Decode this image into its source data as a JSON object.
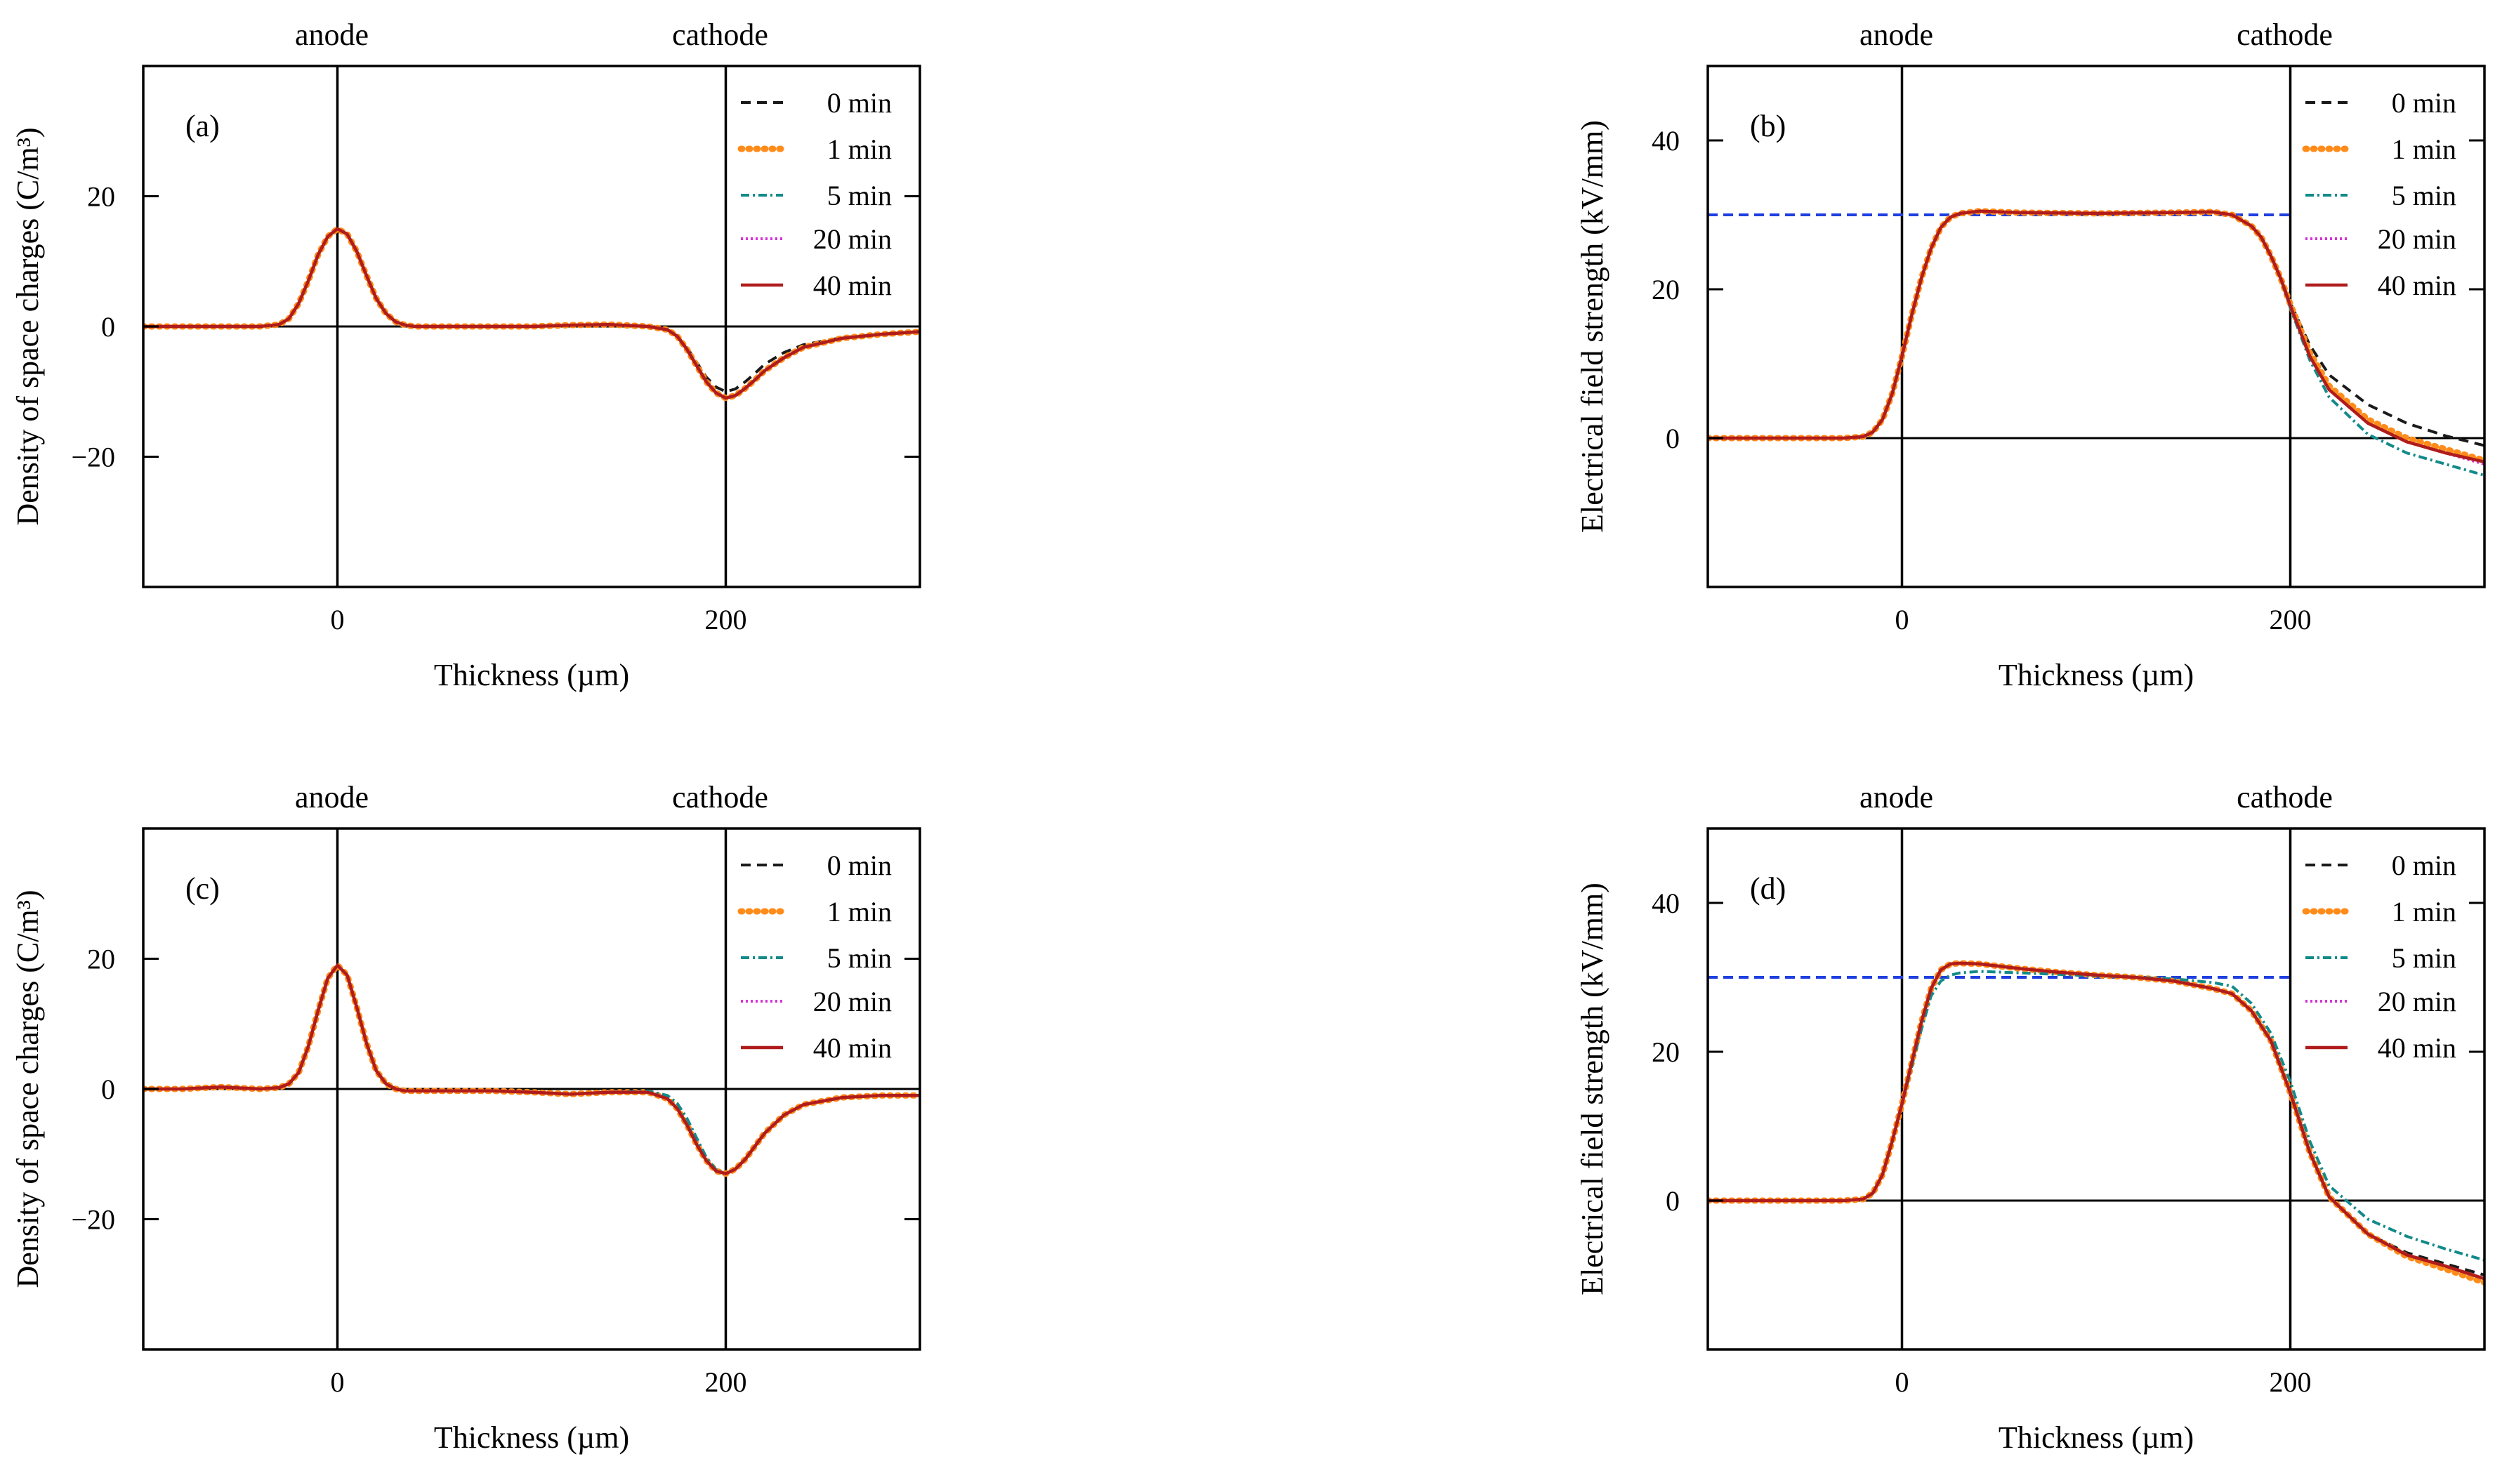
{
  "colors": {
    "0 min": "#1a1a1a",
    "1 min": "#ff8c1a",
    "5 min": "#138a8a",
    "20 min": "#d633d6",
    "40 min": "#b01c1c",
    "reference": "#1f3fe0",
    "axis": "#000000"
  },
  "chart_data": [
    {
      "id": "a",
      "type": "line",
      "panel_label": "(a)",
      "xlabel": "Thickness (µm)",
      "ylabel": "Density of space charges (C/m³)",
      "xlim": [
        -100,
        300
      ],
      "ylim": [
        -40,
        40
      ],
      "xticks": [
        0,
        200
      ],
      "yticks": [
        -20,
        0,
        20
      ],
      "electrodes": [
        {
          "label": "anode",
          "x": 0
        },
        {
          "label": "cathode",
          "x": 200
        }
      ],
      "legend": [
        "0 min",
        "1 min",
        "5 min",
        "20 min",
        "40 min"
      ],
      "x": [
        -100,
        -80,
        -60,
        -40,
        -30,
        -25,
        -20,
        -15,
        -10,
        -5,
        0,
        5,
        10,
        15,
        20,
        25,
        30,
        35,
        40,
        50,
        60,
        80,
        100,
        120,
        140,
        160,
        170,
        175,
        180,
        185,
        190,
        195,
        200,
        205,
        210,
        215,
        220,
        230,
        240,
        260,
        280,
        300
      ],
      "series": [
        {
          "name": "0 min",
          "values": [
            0,
            0,
            0,
            0,
            0.3,
            1.2,
            3.5,
            7,
            11,
            13.8,
            15,
            14.2,
            11.5,
            7.8,
            4.3,
            2,
            0.7,
            0.2,
            0,
            0,
            0,
            0,
            0,
            0.2,
            0.3,
            0,
            -0.5,
            -1.5,
            -3.2,
            -5.5,
            -7.8,
            -9.3,
            -10,
            -9.6,
            -8.5,
            -7.2,
            -5.8,
            -4,
            -2.8,
            -1.7,
            -1.2,
            -0.8
          ]
        },
        {
          "name": "1 min",
          "values": [
            0,
            0,
            0,
            0,
            0.3,
            1.2,
            3.5,
            7,
            11,
            13.8,
            15,
            14.2,
            11.5,
            7.8,
            4.3,
            2,
            0.7,
            0.2,
            0,
            0,
            0,
            0,
            0,
            0.2,
            0.3,
            0,
            -0.5,
            -1.5,
            -3.5,
            -6,
            -8.5,
            -10.2,
            -11,
            -10.6,
            -9.5,
            -8.2,
            -6.8,
            -4.8,
            -3.2,
            -1.8,
            -1.2,
            -0.8
          ]
        },
        {
          "name": "5 min",
          "values": [
            0,
            0,
            0,
            0,
            0.3,
            1.2,
            3.5,
            7,
            11,
            13.8,
            15,
            14.2,
            11.5,
            7.8,
            4.3,
            2,
            0.7,
            0.2,
            0,
            0,
            0,
            0,
            0,
            0.2,
            0.3,
            0,
            -0.5,
            -1.5,
            -3.5,
            -6,
            -8.5,
            -10.2,
            -11,
            -10.6,
            -9.5,
            -8.2,
            -6.8,
            -4.8,
            -3.2,
            -1.8,
            -1.2,
            -0.8
          ]
        },
        {
          "name": "20 min",
          "values": [
            0,
            0,
            0,
            0,
            0.3,
            1.2,
            3.5,
            7,
            11,
            13.8,
            15,
            14.2,
            11.5,
            7.8,
            4.3,
            2,
            0.7,
            0.2,
            0,
            0,
            0,
            0,
            0,
            0.2,
            0.3,
            0,
            -0.5,
            -1.5,
            -3.5,
            -6,
            -8.5,
            -10.2,
            -11,
            -10.6,
            -9.5,
            -8.2,
            -6.8,
            -4.8,
            -3.2,
            -1.8,
            -1.2,
            -0.8
          ]
        },
        {
          "name": "40 min",
          "values": [
            0,
            0,
            0,
            0,
            0.3,
            1.2,
            3.5,
            7,
            11,
            13.8,
            15,
            14.2,
            11.5,
            7.8,
            4.3,
            2,
            0.7,
            0.2,
            0,
            0,
            0,
            0,
            0,
            0.2,
            0.3,
            0,
            -0.5,
            -1.5,
            -3.5,
            -6,
            -8.5,
            -10.2,
            -11,
            -10.6,
            -9.5,
            -8.2,
            -6.8,
            -4.8,
            -3.2,
            -1.8,
            -1.2,
            -0.8
          ]
        }
      ]
    },
    {
      "id": "b",
      "type": "line",
      "panel_label": "(b)",
      "xlabel": "Thickness (µm)",
      "ylabel": "Electrical field strength (kV/mm)",
      "xlim": [
        -100,
        300
      ],
      "ylim": [
        -20,
        50
      ],
      "xticks": [
        0,
        200
      ],
      "yticks": [
        0,
        20,
        40
      ],
      "electrodes": [
        {
          "label": "anode",
          "x": 0
        },
        {
          "label": "cathode",
          "x": 200
        }
      ],
      "legend": [
        "0 min",
        "1 min",
        "5 min",
        "20 min",
        "40 min"
      ],
      "reference_line": {
        "y": 30,
        "x_from": -100,
        "x_to": 200
      },
      "x": [
        -100,
        -50,
        -30,
        -20,
        -15,
        -10,
        -5,
        0,
        5,
        10,
        15,
        20,
        25,
        30,
        40,
        60,
        100,
        140,
        160,
        170,
        180,
        185,
        190,
        195,
        200,
        210,
        220,
        240,
        260,
        280,
        300
      ],
      "series": [
        {
          "name": "0 min",
          "values": [
            0,
            0,
            0,
            0.2,
            0.8,
            2.5,
            6,
            11,
            16.5,
            21.5,
            25.5,
            28.3,
            29.7,
            30.2,
            30.5,
            30.3,
            30.2,
            30.3,
            30.4,
            30,
            28.5,
            27,
            24.5,
            21.5,
            18.2,
            12.5,
            8.5,
            4.5,
            2,
            0.3,
            -1
          ]
        },
        {
          "name": "1 min",
          "values": [
            0,
            0,
            0,
            0.2,
            0.8,
            2.5,
            6,
            11,
            16.5,
            21.5,
            25.5,
            28.3,
            29.7,
            30.2,
            30.5,
            30.3,
            30.2,
            30.3,
            30.4,
            30,
            28.5,
            27,
            24.5,
            21.5,
            18,
            11.5,
            7,
            2.5,
            0,
            -1.5,
            -3
          ]
        },
        {
          "name": "5 min",
          "values": [
            0,
            0,
            0,
            0.2,
            0.8,
            2.5,
            6,
            11,
            16.5,
            21.5,
            25.5,
            28.3,
            29.7,
            30.2,
            30.5,
            30.3,
            30.2,
            30.3,
            30.4,
            30,
            28.5,
            27,
            24.5,
            21.5,
            17.5,
            10.5,
            5.5,
            0.5,
            -2,
            -3.5,
            -5
          ]
        },
        {
          "name": "20 min",
          "values": [
            0,
            0,
            0,
            0.2,
            0.8,
            2.5,
            6,
            11,
            16.5,
            21.5,
            25.5,
            28.3,
            29.7,
            30.2,
            30.5,
            30.3,
            30.2,
            30.3,
            30.4,
            30,
            28.5,
            27,
            24.5,
            21.5,
            17.8,
            11,
            6.5,
            2,
            -0.5,
            -2,
            -3.5
          ]
        },
        {
          "name": "40 min",
          "values": [
            0,
            0,
            0,
            0.2,
            0.8,
            2.5,
            6,
            11,
            16.5,
            21.5,
            25.5,
            28.3,
            29.7,
            30.2,
            30.5,
            30.3,
            30.2,
            30.3,
            30.4,
            30,
            28.5,
            27,
            24.5,
            21.5,
            17.8,
            11,
            6.5,
            2,
            -0.5,
            -2,
            -3.2
          ]
        }
      ]
    },
    {
      "id": "c",
      "type": "line",
      "panel_label": "(c)",
      "xlabel": "Thickness (µm)",
      "ylabel": "Density of space charges (C/m³)",
      "xlim": [
        -100,
        300
      ],
      "ylim": [
        -40,
        40
      ],
      "xticks": [
        0,
        200
      ],
      "yticks": [
        -20,
        0,
        20
      ],
      "electrodes": [
        {
          "label": "anode",
          "x": 0
        },
        {
          "label": "cathode",
          "x": 200
        }
      ],
      "legend": [
        "0 min",
        "1 min",
        "5 min",
        "20 min",
        "40 min"
      ],
      "x": [
        -100,
        -80,
        -60,
        -40,
        -30,
        -25,
        -20,
        -15,
        -10,
        -5,
        0,
        5,
        10,
        15,
        20,
        25,
        30,
        35,
        40,
        50,
        60,
        80,
        100,
        120,
        140,
        160,
        170,
        175,
        180,
        185,
        190,
        195,
        200,
        205,
        210,
        215,
        220,
        230,
        240,
        260,
        280,
        300
      ],
      "series": [
        {
          "name": "0 min",
          "values": [
            0,
            0,
            0.3,
            0,
            0.2,
            0.8,
            2.5,
            6.5,
            12,
            17,
            19,
            17.5,
            12.5,
            7,
            2.8,
            0.8,
            0,
            -0.3,
            -0.3,
            -0.3,
            -0.3,
            -0.3,
            -0.5,
            -0.8,
            -0.5,
            -0.5,
            -1.5,
            -3,
            -5.5,
            -8.5,
            -11,
            -12.6,
            -13,
            -12.3,
            -10.8,
            -8.8,
            -6.8,
            -4,
            -2.4,
            -1.3,
            -1,
            -1
          ]
        },
        {
          "name": "1 min",
          "values": [
            0,
            0,
            0.3,
            0,
            0.2,
            0.8,
            2.5,
            6.5,
            12,
            17,
            19,
            17.5,
            12.5,
            7,
            2.8,
            0.8,
            0,
            -0.3,
            -0.3,
            -0.3,
            -0.3,
            -0.3,
            -0.5,
            -0.8,
            -0.5,
            -0.5,
            -1.5,
            -3,
            -5.5,
            -8.5,
            -11,
            -12.6,
            -13,
            -12.3,
            -10.8,
            -8.8,
            -6.8,
            -4,
            -2.4,
            -1.3,
            -1,
            -1
          ]
        },
        {
          "name": "5 min",
          "values": [
            0,
            0,
            0.3,
            0,
            0.2,
            0.8,
            2.5,
            6.5,
            12,
            17,
            19,
            17.5,
            12.5,
            7,
            2.8,
            0.8,
            0,
            -0.3,
            -0.3,
            -0.3,
            -0.3,
            -0.3,
            -0.5,
            -0.8,
            -0.5,
            -0.3,
            -1,
            -2.2,
            -4.5,
            -7.5,
            -10.5,
            -12.4,
            -13,
            -12.3,
            -10.8,
            -8.8,
            -6.8,
            -4,
            -2.4,
            -1.3,
            -1,
            -1
          ]
        },
        {
          "name": "20 min",
          "values": [
            0,
            0,
            0.3,
            0,
            0.2,
            0.8,
            2.5,
            6.5,
            12,
            17,
            19,
            17.5,
            12.5,
            7,
            2.8,
            0.8,
            0,
            -0.3,
            -0.3,
            -0.3,
            -0.3,
            -0.3,
            -0.5,
            -0.8,
            -0.5,
            -0.5,
            -1.5,
            -3,
            -5.5,
            -8.5,
            -11,
            -12.6,
            -13,
            -12.3,
            -10.8,
            -8.8,
            -6.8,
            -4,
            -2.4,
            -1.3,
            -1,
            -1
          ]
        },
        {
          "name": "40 min",
          "values": [
            0,
            0,
            0.3,
            0,
            0.2,
            0.8,
            2.5,
            6.5,
            12,
            17,
            19,
            17.5,
            12.5,
            7,
            2.8,
            0.8,
            0,
            -0.3,
            -0.3,
            -0.3,
            -0.3,
            -0.3,
            -0.5,
            -0.8,
            -0.5,
            -0.5,
            -1.5,
            -3,
            -5.5,
            -8.5,
            -11,
            -12.6,
            -13,
            -12.3,
            -10.8,
            -8.8,
            -6.8,
            -4,
            -2.4,
            -1.3,
            -1,
            -1
          ]
        }
      ]
    },
    {
      "id": "d",
      "type": "line",
      "panel_label": "(d)",
      "xlabel": "Thickness (µm)",
      "ylabel": "Electrical field strength (kV/mm)",
      "xlim": [
        -100,
        300
      ],
      "ylim": [
        -20,
        50
      ],
      "xticks": [
        0,
        200
      ],
      "yticks": [
        0,
        20,
        40
      ],
      "electrodes": [
        {
          "label": "anode",
          "x": 0
        },
        {
          "label": "cathode",
          "x": 200
        }
      ],
      "legend": [
        "0 min",
        "1 min",
        "5 min",
        "20 min",
        "40 min"
      ],
      "reference_line": {
        "y": 30,
        "x_from": -100,
        "x_to": 200
      },
      "x": [
        -100,
        -50,
        -30,
        -20,
        -15,
        -10,
        -5,
        0,
        5,
        10,
        15,
        20,
        25,
        30,
        40,
        60,
        80,
        100,
        120,
        140,
        160,
        170,
        180,
        190,
        200,
        205,
        210,
        220,
        240,
        260,
        280,
        300
      ],
      "series": [
        {
          "name": "0 min",
          "values": [
            0,
            0,
            0,
            0.2,
            1,
            3.5,
            8,
            13,
            18.5,
            24,
            28.5,
            31,
            31.8,
            31.9,
            31.8,
            31.2,
            30.7,
            30.3,
            30,
            29.5,
            28.5,
            27.8,
            25.5,
            21.5,
            14.5,
            10.5,
            6.5,
            0.5,
            -4.5,
            -7,
            -8.5,
            -10
          ]
        },
        {
          "name": "1 min",
          "values": [
            0,
            0,
            0,
            0.2,
            1,
            3.5,
            8,
            13,
            18.5,
            24,
            28.5,
            31,
            31.8,
            31.9,
            31.8,
            31.2,
            30.7,
            30.3,
            30,
            29.5,
            28.5,
            27.8,
            25.5,
            21.5,
            14.5,
            10.5,
            6.5,
            0.5,
            -4.5,
            -7.5,
            -9.2,
            -11
          ]
        },
        {
          "name": "5 min",
          "values": [
            0,
            0,
            0,
            0.2,
            1,
            3.5,
            8,
            13,
            18,
            23,
            27.5,
            29.5,
            30.3,
            30.6,
            30.8,
            30.6,
            30.4,
            30.2,
            30,
            29.8,
            29.3,
            28.8,
            26.5,
            22.5,
            16,
            12,
            8,
            2,
            -2.5,
            -4.8,
            -6.5,
            -8
          ]
        },
        {
          "name": "20 min",
          "values": [
            0,
            0,
            0,
            0.2,
            1,
            3.5,
            8,
            13,
            18.5,
            24,
            28.5,
            31,
            31.8,
            31.9,
            31.8,
            31.2,
            30.7,
            30.3,
            30,
            29.5,
            28.5,
            27.8,
            25.5,
            21.5,
            14.5,
            10.5,
            6.5,
            0.5,
            -4.5,
            -7.3,
            -8.8,
            -10.5
          ]
        },
        {
          "name": "40 min",
          "values": [
            0,
            0,
            0,
            0.2,
            1,
            3.5,
            8,
            13,
            18.5,
            24,
            28.5,
            31,
            31.8,
            31.9,
            31.8,
            31.2,
            30.7,
            30.3,
            30,
            29.5,
            28.5,
            27.8,
            25.5,
            21.5,
            14.5,
            10.5,
            6.5,
            0.5,
            -4.5,
            -7.3,
            -8.8,
            -10.5
          ]
        }
      ]
    }
  ]
}
